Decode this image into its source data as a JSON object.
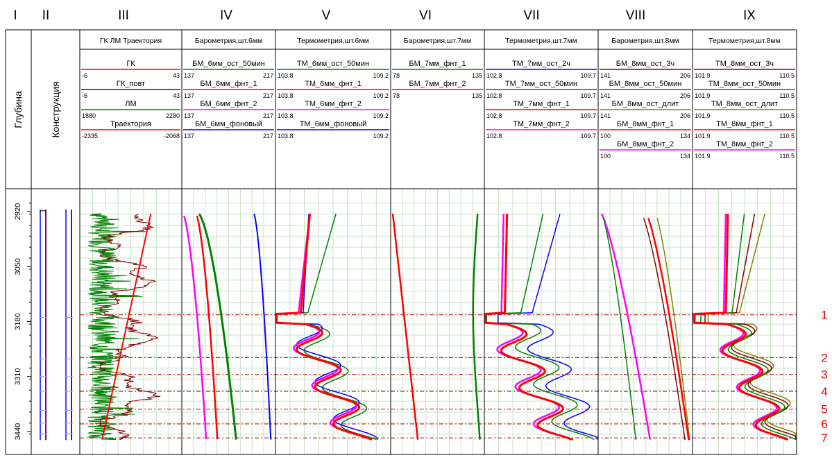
{
  "roman_numerals": [
    "I",
    "II",
    "III",
    "IV",
    "V",
    "VI",
    "VII",
    "VIII",
    "IX"
  ],
  "depth_label": "Глубина",
  "construction_label": "Конструкция",
  "depth_ticks": [
    "2920",
    "3050",
    "3180",
    "3310",
    "3440"
  ],
  "marker_numbers": [
    "1",
    "2",
    "3",
    "4",
    "5",
    "6",
    "7"
  ],
  "colors": {
    "red": "#ff0000",
    "darkred": "#800000",
    "green": "#008000",
    "magenta": "#ff00ff",
    "blue": "#0000ff",
    "olive": "#808000",
    "grid": "#c8e0c8",
    "refline": "#c00000"
  },
  "tracks": [
    {
      "title": "ГК   ЛМ  Траектория",
      "curves": [
        {
          "name": "ГК",
          "min": "-6",
          "max": "43",
          "color": "#ff0000"
        },
        {
          "name": "ГК_повт",
          "min": "-6",
          "max": "43",
          "color": "#800000"
        },
        {
          "name": "ЛМ",
          "min": "1880",
          "max": "2280",
          "color": "#008000"
        },
        {
          "name": "Траектория",
          "min": "-2335",
          "max": "-2068",
          "color": "#ff0000"
        }
      ]
    },
    {
      "title": "Барометрия,шт.6мм",
      "curves": [
        {
          "name": "БМ_6мм_ост_50мин",
          "min": "137",
          "max": "217",
          "color": "#008000"
        },
        {
          "name": "БМ_6мм_фнт_1",
          "min": "137",
          "max": "217",
          "color": "#ff0000"
        },
        {
          "name": "БМ_6мм_фнт_2",
          "min": "137",
          "max": "217",
          "color": "#ff00ff"
        },
        {
          "name": "БМ_6мм_фоновый",
          "min": "137",
          "max": "217",
          "color": "#0000ff"
        }
      ]
    },
    {
      "title": "Термометрия,шт.6мм",
      "curves": [
        {
          "name": "ТМ_6мм_ост_50мин",
          "min": "103.8",
          "max": "109.2",
          "color": "#008000"
        },
        {
          "name": "ТМ_6мм_фнт_1",
          "min": "103.8",
          "max": "109.2",
          "color": "#ff0000"
        },
        {
          "name": "ТМ_6мм_фнт_2",
          "min": "103.8",
          "max": "109.2",
          "color": "#ff00ff"
        },
        {
          "name": "ТМ_6мм_фоновый",
          "min": "103.8",
          "max": "109.2",
          "color": "#0000ff"
        }
      ]
    },
    {
      "title": "Барометрия,шт.7мм",
      "curves": [
        {
          "name": "БМ_7мм_фнт_1",
          "min": "78",
          "max": "135",
          "color": "#008000"
        },
        {
          "name": "БМ_7мм_фнт_2",
          "min": "78",
          "max": "135",
          "color": "#ff0000"
        }
      ]
    },
    {
      "title": "Термометрия,шт.7мм",
      "curves": [
        {
          "name": "ТМ_7мм_ост_2ч",
          "min": "102.8",
          "max": "109.7",
          "color": "#0000ff"
        },
        {
          "name": "ТМ_7мм_ост_50мин",
          "min": "102.8",
          "max": "109.7",
          "color": "#008000"
        },
        {
          "name": "ТМ_7мм_фнт_1",
          "min": "102.8",
          "max": "109.7",
          "color": "#ff0000"
        },
        {
          "name": "ТМ_7мм_фнт_2",
          "min": "102.8",
          "max": "109.7",
          "color": "#ff00ff"
        }
      ]
    },
    {
      "title": "Барометрия,шт.8мм",
      "curves": [
        {
          "name": "БМ_8мм_ост_3ч",
          "min": "141",
          "max": "206",
          "color": "#800000"
        },
        {
          "name": "БМ_8мм_ост_50мин",
          "min": "141",
          "max": "206",
          "color": "#008000"
        },
        {
          "name": "БМ_8мм_ост_длит",
          "min": "141",
          "max": "206",
          "color": "#808000"
        },
        {
          "name": "БМ_8мм_фнт_1",
          "min": "100",
          "max": "134",
          "color": "#ff0000"
        },
        {
          "name": "БМ_8мм_фнт_2",
          "min": "100",
          "max": "134",
          "color": "#ff00ff"
        }
      ]
    },
    {
      "title": "Термометрия,шт.8мм",
      "curves": [
        {
          "name": "ТМ_8мм_ост_3ч",
          "min": "101.9",
          "max": "110.5",
          "color": "#800000"
        },
        {
          "name": "ТМ_8мм_ост_50мин",
          "min": "101.9",
          "max": "110.5",
          "color": "#008000"
        },
        {
          "name": "ТМ_8мм_ост_длит",
          "min": "101.9",
          "max": "110.5",
          "color": "#808000"
        },
        {
          "name": "ТМ_8мм_фнт_1",
          "min": "101.9",
          "max": "110.5",
          "color": "#ff0000"
        },
        {
          "name": "ТМ_8мм_фнт_2",
          "min": "101.9",
          "max": "110.5",
          "color": "#ff00ff"
        }
      ]
    }
  ],
  "chart_data": {
    "type": "line",
    "title": "",
    "ylabel": "Глубина",
    "ylim": [
      2895,
      3475
    ],
    "y_ticks": [
      2920,
      3050,
      3180,
      3310,
      3440
    ],
    "reference_depths": [
      3164,
      3265,
      3305,
      3345,
      3387,
      3422,
      3455
    ],
    "reference_labels": [
      "1",
      "2",
      "3",
      "4",
      "5",
      "6",
      "7"
    ],
    "grid": true
  }
}
